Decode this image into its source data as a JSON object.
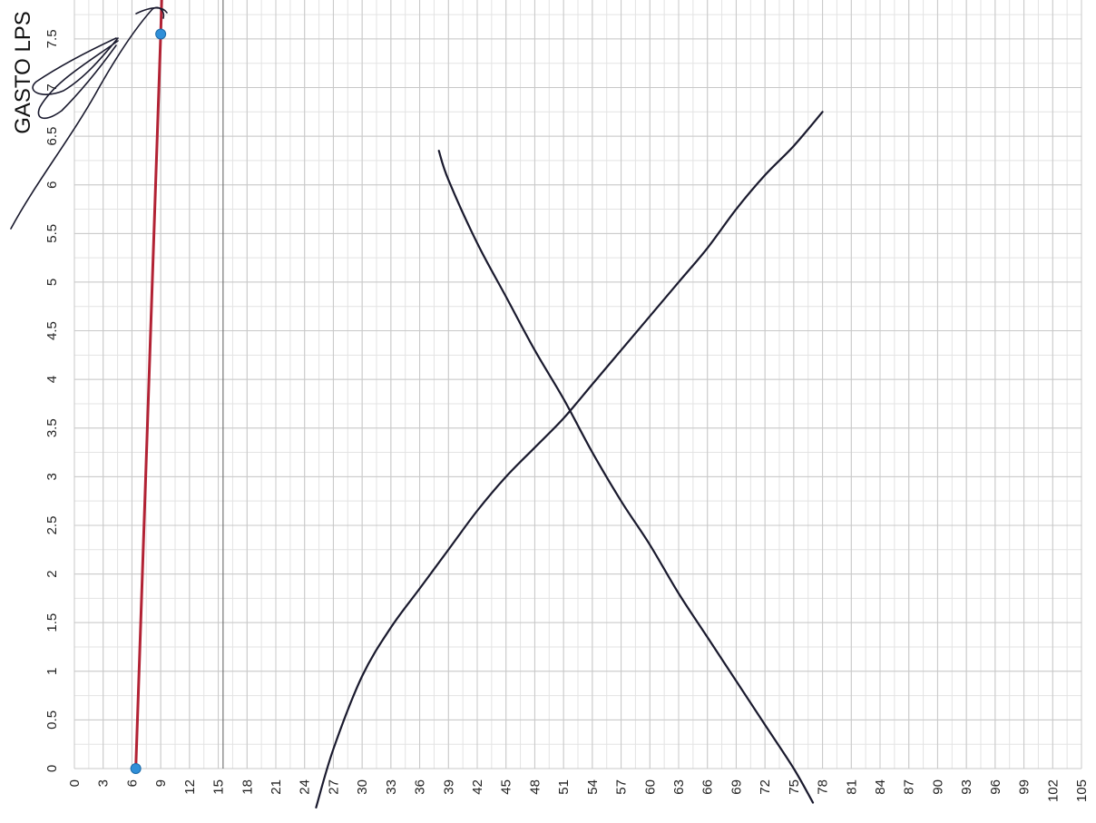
{
  "chart_data": {
    "type": "line",
    "title": "",
    "ylabel": "GASTO LPS",
    "xlabel": "",
    "x_ticks": [
      0,
      3,
      6,
      9,
      12,
      15,
      18,
      21,
      24,
      27,
      30,
      33,
      36,
      39,
      42,
      45,
      48,
      51,
      54,
      57,
      60,
      63,
      66,
      69,
      72,
      75,
      78,
      81,
      84,
      87,
      90,
      93,
      96,
      99,
      102,
      105
    ],
    "y_ticks": [
      0,
      0.5,
      1,
      1.5,
      2,
      2.5,
      3,
      3.5,
      4,
      4.5,
      5,
      5.5,
      6,
      6.5,
      7,
      7.5
    ],
    "xlim": [
      0,
      105
    ],
    "ylim": [
      0,
      7.9
    ],
    "grid": true,
    "series": [
      {
        "style": "hand-drawn",
        "color": "#1a1a2e",
        "points": [
          [
            25.2,
            -0.4
          ],
          [
            27,
            0.2
          ],
          [
            30,
            0.95
          ],
          [
            33,
            1.45
          ],
          [
            36,
            1.85
          ],
          [
            39,
            2.25
          ],
          [
            42,
            2.65
          ],
          [
            45,
            3.0
          ],
          [
            48,
            3.3
          ],
          [
            51,
            3.6
          ],
          [
            54,
            3.95
          ],
          [
            57,
            4.3
          ],
          [
            60,
            4.65
          ],
          [
            63,
            5.0
          ],
          [
            66,
            5.35
          ],
          [
            69,
            5.75
          ],
          [
            72,
            6.1
          ],
          [
            75,
            6.4
          ],
          [
            78,
            6.75
          ]
        ]
      },
      {
        "style": "hand-drawn",
        "color": "#1a1a2e",
        "points": [
          [
            38,
            6.35
          ],
          [
            39,
            6.05
          ],
          [
            42,
            5.4
          ],
          [
            45,
            4.85
          ],
          [
            48,
            4.3
          ],
          [
            51,
            3.8
          ],
          [
            54,
            3.25
          ],
          [
            57,
            2.75
          ],
          [
            60,
            2.3
          ],
          [
            63,
            1.8
          ],
          [
            66,
            1.35
          ],
          [
            69,
            0.9
          ],
          [
            72,
            0.45
          ],
          [
            75,
            0.0
          ],
          [
            77,
            -0.35
          ]
        ]
      },
      {
        "style": "straight",
        "color": "#b22234",
        "points": [
          [
            6.4,
            0
          ],
          [
            9.0,
            7.55
          ],
          [
            9.1,
            7.9
          ]
        ]
      }
    ],
    "markers": [
      {
        "x": 6.4,
        "y": 0,
        "color": "#2f8fd8"
      },
      {
        "x": 9.0,
        "y": 7.55,
        "color": "#2f8fd8"
      }
    ],
    "annotations": [
      {
        "type": "scribble",
        "color": "#1a1a2e"
      }
    ]
  }
}
